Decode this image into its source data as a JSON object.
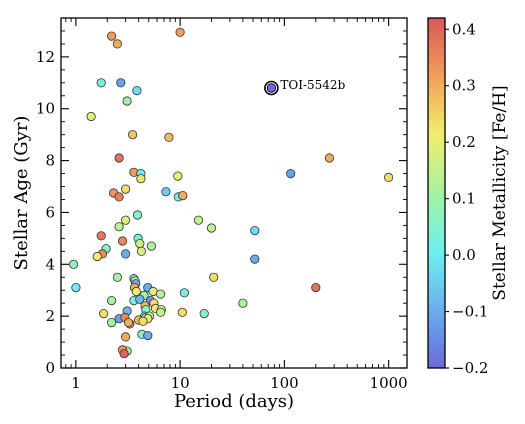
{
  "chart_data": {
    "type": "scatter",
    "xlabel": "Period (days)",
    "ylabel": "Stellar Age (Gyr)",
    "x_scale": "log",
    "xlim": [
      0.72,
      1500
    ],
    "ylim": [
      0,
      13.5
    ],
    "x_ticks": [
      {
        "value": 1,
        "label": "1"
      },
      {
        "value": 10,
        "label": "10"
      },
      {
        "value": 100,
        "label": "100"
      },
      {
        "value": 1000,
        "label": "1000"
      }
    ],
    "y_ticks": [
      0,
      2,
      4,
      6,
      8,
      10,
      12
    ],
    "colorbar": {
      "label": "Stellar Metallicity [Fe/H]",
      "range": [
        -0.2,
        0.42
      ],
      "ticks": [
        {
          "value": -0.2,
          "label": "−0.2"
        },
        {
          "value": -0.1,
          "label": "−0.1"
        },
        {
          "value": 0.0,
          "label": "0.0"
        },
        {
          "value": 0.1,
          "label": "0.1"
        },
        {
          "value": 0.2,
          "label": "0.2"
        },
        {
          "value": 0.3,
          "label": "0.3"
        },
        {
          "value": 0.4,
          "label": "0.4"
        }
      ],
      "colormap": "jet"
    },
    "highlight": {
      "name": "TOI-5542b",
      "x": 75.1,
      "y": 10.8,
      "feh": -0.21
    },
    "points": [
      {
        "x": 2.2,
        "y": 12.8,
        "feh": 0.32
      },
      {
        "x": 2.5,
        "y": 12.5,
        "feh": 0.3
      },
      {
        "x": 10.0,
        "y": 12.95,
        "feh": 0.32
      },
      {
        "x": 1.75,
        "y": 11.0,
        "feh": 0.02
      },
      {
        "x": 2.7,
        "y": 11.0,
        "feh": -0.12
      },
      {
        "x": 3.85,
        "y": 10.7,
        "feh": -0.02
      },
      {
        "x": 3.1,
        "y": 10.3,
        "feh": 0.1
      },
      {
        "x": 1.4,
        "y": 9.7,
        "feh": 0.2
      },
      {
        "x": 3.5,
        "y": 9.0,
        "feh": 0.27
      },
      {
        "x": 7.8,
        "y": 8.9,
        "feh": 0.28
      },
      {
        "x": 2.6,
        "y": 8.1,
        "feh": 0.38
      },
      {
        "x": 3.6,
        "y": 7.55,
        "feh": 0.32
      },
      {
        "x": 4.2,
        "y": 7.5,
        "feh": 0.0
      },
      {
        "x": 4.2,
        "y": 7.3,
        "feh": 0.23
      },
      {
        "x": 9.5,
        "y": 7.4,
        "feh": 0.2
      },
      {
        "x": 115,
        "y": 7.5,
        "feh": -0.12
      },
      {
        "x": 270,
        "y": 8.1,
        "feh": 0.3
      },
      {
        "x": 1000,
        "y": 7.35,
        "feh": 0.24
      },
      {
        "x": 3.0,
        "y": 6.9,
        "feh": 0.24
      },
      {
        "x": 2.3,
        "y": 6.75,
        "feh": 0.33
      },
      {
        "x": 2.6,
        "y": 6.6,
        "feh": 0.36
      },
      {
        "x": 7.3,
        "y": 6.8,
        "feh": -0.05
      },
      {
        "x": 9.6,
        "y": 6.6,
        "feh": 0.02
      },
      {
        "x": 10.6,
        "y": 6.65,
        "feh": 0.3
      },
      {
        "x": 3.9,
        "y": 5.9,
        "feh": 0.06
      },
      {
        "x": 3.0,
        "y": 5.7,
        "feh": 0.18
      },
      {
        "x": 2.6,
        "y": 5.45,
        "feh": 0.14
      },
      {
        "x": 15,
        "y": 5.7,
        "feh": 0.14
      },
      {
        "x": 20,
        "y": 5.4,
        "feh": 0.14
      },
      {
        "x": 52,
        "y": 5.3,
        "feh": -0.03
      },
      {
        "x": 1.75,
        "y": 5.1,
        "feh": 0.37
      },
      {
        "x": 2.8,
        "y": 4.9,
        "feh": 0.35
      },
      {
        "x": 3.95,
        "y": 5.0,
        "feh": 0.03
      },
      {
        "x": 4.1,
        "y": 4.8,
        "feh": 0.16
      },
      {
        "x": 5.3,
        "y": 4.7,
        "feh": 0.12
      },
      {
        "x": 1.95,
        "y": 4.6,
        "feh": 0.05
      },
      {
        "x": 1.8,
        "y": 4.4,
        "feh": 0.35
      },
      {
        "x": 1.6,
        "y": 4.3,
        "feh": 0.22
      },
      {
        "x": 4.25,
        "y": 4.5,
        "feh": 0.18
      },
      {
        "x": 3.0,
        "y": 4.4,
        "feh": -0.1
      },
      {
        "x": 52,
        "y": 4.2,
        "feh": -0.1
      },
      {
        "x": 0.95,
        "y": 4.0,
        "feh": 0.07
      },
      {
        "x": 2.5,
        "y": 3.5,
        "feh": 0.1
      },
      {
        "x": 3.6,
        "y": 3.45,
        "feh": -0.05
      },
      {
        "x": 3.7,
        "y": 3.35,
        "feh": 0.2
      },
      {
        "x": 3.75,
        "y": 3.25,
        "feh": -0.1
      },
      {
        "x": 3.65,
        "y": 3.1,
        "feh": 0.3
      },
      {
        "x": 21,
        "y": 3.5,
        "feh": 0.24
      },
      {
        "x": 1.0,
        "y": 3.1,
        "feh": 0.0
      },
      {
        "x": 4.9,
        "y": 3.1,
        "feh": -0.1
      },
      {
        "x": 3.8,
        "y": 2.95,
        "feh": 0.22
      },
      {
        "x": 5.5,
        "y": 2.95,
        "feh": 0.18
      },
      {
        "x": 6.5,
        "y": 2.85,
        "feh": 0.14
      },
      {
        "x": 11.0,
        "y": 2.9,
        "feh": 0.02
      },
      {
        "x": 200,
        "y": 3.1,
        "feh": 0.38
      },
      {
        "x": 4.5,
        "y": 2.8,
        "feh": 0.1
      },
      {
        "x": 3.6,
        "y": 2.6,
        "feh": 0.02
      },
      {
        "x": 4.1,
        "y": 2.65,
        "feh": -0.08
      },
      {
        "x": 5.2,
        "y": 2.6,
        "feh": -0.13
      },
      {
        "x": 5.6,
        "y": 2.5,
        "feh": 0.24
      },
      {
        "x": 2.2,
        "y": 2.6,
        "feh": 0.1
      },
      {
        "x": 40,
        "y": 2.5,
        "feh": 0.12
      },
      {
        "x": 4.6,
        "y": 2.4,
        "feh": 0.28
      },
      {
        "x": 5.8,
        "y": 2.3,
        "feh": 0.22
      },
      {
        "x": 3.1,
        "y": 2.2,
        "feh": -0.08
      },
      {
        "x": 4.7,
        "y": 2.25,
        "feh": 0.06
      },
      {
        "x": 6.6,
        "y": 2.25,
        "feh": 0.2
      },
      {
        "x": 6.5,
        "y": 2.15,
        "feh": 0.14
      },
      {
        "x": 10.5,
        "y": 2.15,
        "feh": 0.24
      },
      {
        "x": 17,
        "y": 2.1,
        "feh": 0.05
      },
      {
        "x": 1.85,
        "y": 2.1,
        "feh": 0.24
      },
      {
        "x": 4.55,
        "y": 2.0,
        "feh": 0.02
      },
      {
        "x": 4.7,
        "y": 1.95,
        "feh": 0.08
      },
      {
        "x": 5.1,
        "y": 2.0,
        "feh": 0.12
      },
      {
        "x": 2.6,
        "y": 1.9,
        "feh": -0.12
      },
      {
        "x": 2.95,
        "y": 1.95,
        "feh": 0.35
      },
      {
        "x": 4.0,
        "y": 1.85,
        "feh": 0.28
      },
      {
        "x": 4.9,
        "y": 1.9,
        "feh": 0.2
      },
      {
        "x": 2.2,
        "y": 1.75,
        "feh": 0.1
      },
      {
        "x": 3.3,
        "y": 1.7,
        "feh": 0.33
      },
      {
        "x": 3.2,
        "y": 1.75,
        "feh": 0.3
      },
      {
        "x": 4.4,
        "y": 1.8,
        "feh": 0.24
      },
      {
        "x": 4.3,
        "y": 1.3,
        "feh": 0.05
      },
      {
        "x": 4.9,
        "y": 1.25,
        "feh": -0.1
      },
      {
        "x": 3.0,
        "y": 1.2,
        "feh": 0.3
      },
      {
        "x": 3.1,
        "y": 0.65,
        "feh": 0.1
      },
      {
        "x": 2.8,
        "y": 0.7,
        "feh": 0.33
      },
      {
        "x": 2.9,
        "y": 0.55,
        "feh": 0.4
      }
    ]
  }
}
